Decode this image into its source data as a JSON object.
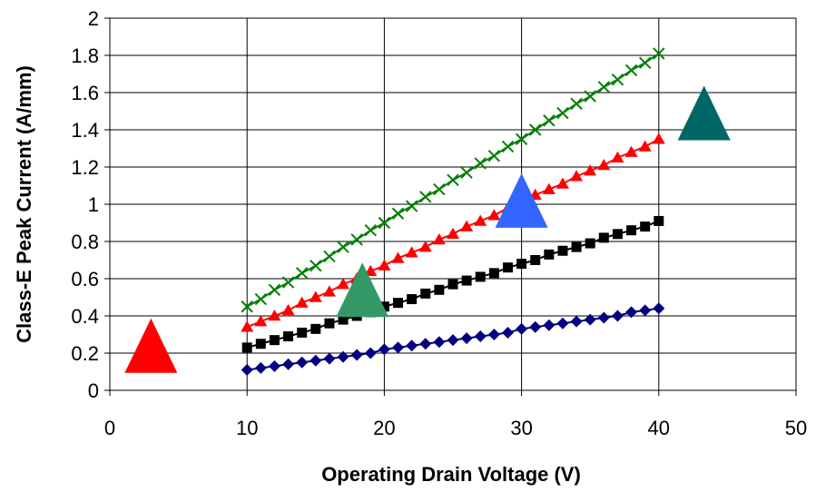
{
  "chart_data": {
    "type": "scatter",
    "title": "",
    "xlabel": "Operating Drain Voltage (V)",
    "ylabel": "Class-E Peak Current (A/mm)",
    "xlim": [
      0,
      50
    ],
    "ylim": [
      0,
      2
    ],
    "xticks": [
      0,
      10,
      20,
      30,
      40,
      50
    ],
    "xtick_labels": [
      "0",
      "10",
      "20",
      "30",
      "40",
      "50"
    ],
    "yticks": [
      0,
      0.2,
      0.4,
      0.6,
      0.8,
      1,
      1.2,
      1.4,
      1.6,
      1.8,
      2
    ],
    "ytick_labels": [
      "0",
      "0.2",
      "0.4",
      "0.6",
      "0.8",
      "1",
      "1.2",
      "1.4",
      "1.6",
      "1.8",
      "2"
    ],
    "grid": true,
    "legend": "none",
    "x": [
      10,
      11,
      12,
      13,
      14,
      15,
      16,
      17,
      18,
      19,
      20,
      21,
      22,
      23,
      24,
      25,
      26,
      27,
      28,
      29,
      30,
      31,
      32,
      33,
      34,
      35,
      36,
      37,
      38,
      39,
      40
    ],
    "series": [
      {
        "marker": "diamond",
        "color": "#000080",
        "line": true,
        "values": [
          0.11,
          0.12,
          0.13,
          0.14,
          0.15,
          0.16,
          0.17,
          0.18,
          0.19,
          0.2,
          0.22,
          0.23,
          0.24,
          0.25,
          0.26,
          0.27,
          0.28,
          0.29,
          0.3,
          0.31,
          0.33,
          0.34,
          0.35,
          0.36,
          0.37,
          0.38,
          0.39,
          0.4,
          0.42,
          0.43,
          0.44
        ]
      },
      {
        "marker": "square",
        "color": "#000000",
        "line": true,
        "values": [
          0.23,
          0.25,
          0.27,
          0.29,
          0.31,
          0.33,
          0.36,
          0.38,
          0.4,
          0.42,
          0.45,
          0.47,
          0.49,
          0.52,
          0.54,
          0.57,
          0.59,
          0.61,
          0.63,
          0.66,
          0.68,
          0.7,
          0.73,
          0.75,
          0.77,
          0.79,
          0.82,
          0.84,
          0.86,
          0.88,
          0.91
        ]
      },
      {
        "marker": "triangle",
        "color": "#ff0000",
        "line": true,
        "values": [
          0.34,
          0.37,
          0.4,
          0.43,
          0.47,
          0.5,
          0.53,
          0.57,
          0.6,
          0.64,
          0.67,
          0.71,
          0.74,
          0.77,
          0.81,
          0.84,
          0.88,
          0.91,
          0.94,
          0.98,
          1.01,
          1.05,
          1.08,
          1.11,
          1.15,
          1.18,
          1.21,
          1.25,
          1.28,
          1.31,
          1.35
        ]
      },
      {
        "marker": "x",
        "color": "#008000",
        "line": true,
        "values": [
          0.45,
          0.49,
          0.54,
          0.58,
          0.63,
          0.67,
          0.72,
          0.77,
          0.81,
          0.86,
          0.9,
          0.95,
          0.99,
          1.04,
          1.08,
          1.13,
          1.17,
          1.22,
          1.26,
          1.31,
          1.35,
          1.4,
          1.45,
          1.49,
          1.54,
          1.58,
          1.63,
          1.67,
          1.72,
          1.76,
          1.81
        ]
      }
    ],
    "annotations": [
      {
        "shape": "triangle",
        "color": "#ff0000",
        "x": 3.0,
        "y": 0.24
      },
      {
        "shape": "triangle",
        "color": "#339966",
        "x": 18.4,
        "y": 0.54
      },
      {
        "shape": "triangle",
        "color": "#3366ff",
        "x": 30.0,
        "y": 1.02
      },
      {
        "shape": "triangle",
        "color": "#006666",
        "x": 43.3,
        "y": 1.49
      }
    ]
  }
}
